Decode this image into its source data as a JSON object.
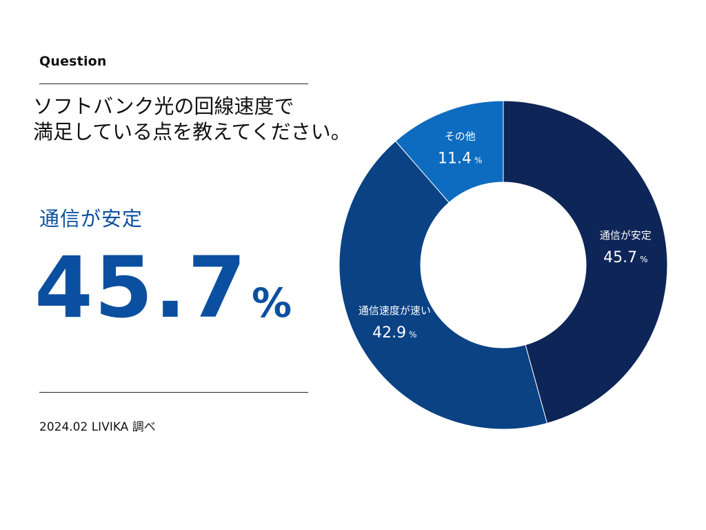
{
  "header": {
    "section_label": "Question",
    "question_line1": "ソフトバンク光の回線速度で",
    "question_line2": "満足している点を教えてください。"
  },
  "highlight": {
    "label": "通信が安定",
    "value": "45.7",
    "unit": "%"
  },
  "footer": {
    "source": "2024.02 LIVIKA 調べ"
  },
  "colors": {
    "accent": "#0b4fa0",
    "slice_1": "#0d2557",
    "slice_2": "#0a4284",
    "slice_3": "#0d6cbf"
  },
  "chart_data": {
    "type": "pie",
    "variant": "donut",
    "unit": "%",
    "slices": [
      {
        "label": "通信が安定",
        "value": 45.7,
        "display": "45.7",
        "color": "#0d2557"
      },
      {
        "label": "通信速度が速い",
        "value": 42.9,
        "display": "42.9",
        "color": "#0a4284"
      },
      {
        "label": "その他",
        "value": 11.4,
        "display": "11.4",
        "color": "#0d6cbf"
      }
    ]
  }
}
